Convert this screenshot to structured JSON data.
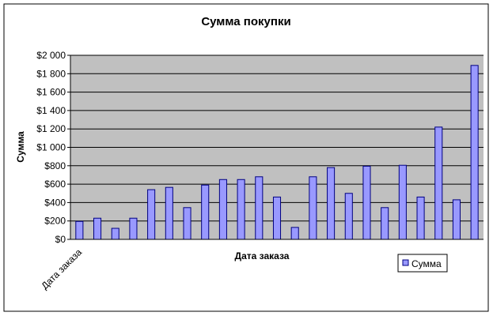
{
  "chart_data": {
    "type": "bar",
    "title": "Сумма покупки",
    "xlabel": "Дата заказа",
    "ylabel": "Сумма",
    "x_tick_label": "Дата заказа",
    "ylim": [
      0,
      2000
    ],
    "yticks": [
      "$0",
      "$200",
      "$400",
      "$600",
      "$800",
      "$1 000",
      "$1 200",
      "$1 400",
      "$1 600",
      "$1 800",
      "$2 000"
    ],
    "grid": true,
    "legend_position": "bottom-right",
    "series": [
      {
        "name": "Сумма",
        "values": [
          195,
          230,
          120,
          230,
          540,
          565,
          345,
          590,
          650,
          650,
          680,
          460,
          130,
          680,
          780,
          500,
          795,
          345,
          805,
          460,
          1220,
          430,
          1890
        ]
      }
    ]
  },
  "colors": {
    "plot_background": "#c0c0c0",
    "bar_fill": "#9999ff",
    "bar_stroke": "#000080",
    "gridline": "#000000"
  }
}
